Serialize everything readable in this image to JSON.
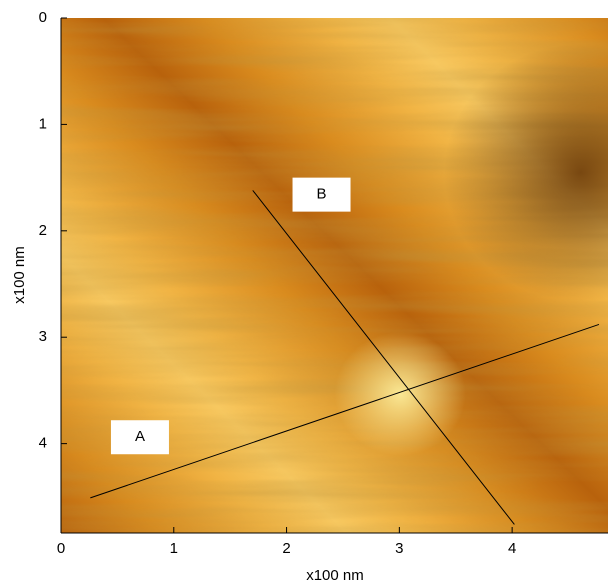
{
  "chart_data": {
    "type": "image",
    "xlabel": "x100 nm",
    "ylabel": "x100 nm",
    "xlim": [
      0,
      4.85
    ],
    "ylim": [
      0,
      4.84
    ],
    "xticks": [
      0,
      1,
      2,
      3,
      4
    ],
    "yticks": [
      0,
      1,
      2,
      3,
      4
    ],
    "y_inverted": true,
    "annotations": [
      {
        "label": "A",
        "x": [
          0.26,
          4.77
        ],
        "y": [
          4.51,
          2.88
        ],
        "label_x": 0.7,
        "label_y": 3.94,
        "color": "#000000"
      },
      {
        "label": "B",
        "x": [
          1.7,
          4.02
        ],
        "y": [
          1.62,
          4.76
        ],
        "label_x": 2.31,
        "label_y": 1.66,
        "color": "#000000"
      }
    ]
  }
}
